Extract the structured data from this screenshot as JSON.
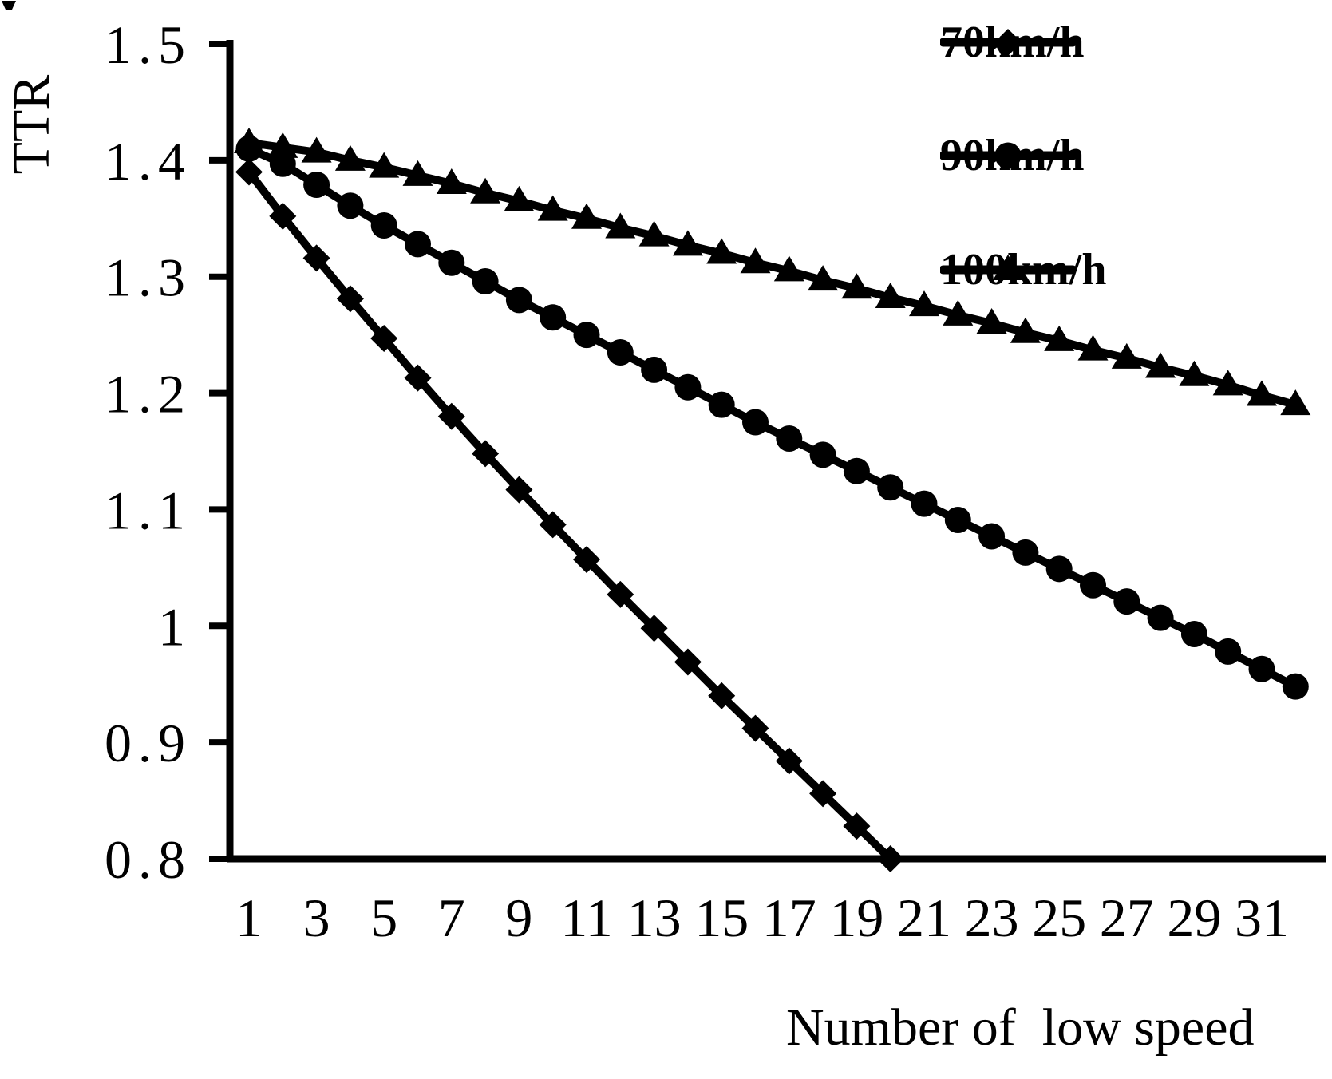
{
  "figure": {
    "background": "#ffffff",
    "ink": "#000000"
  },
  "chart_data": {
    "type": "line",
    "title": "",
    "xlabel": "Number of  low speed",
    "ylabel": "TTR",
    "x_tick_labels": [
      1,
      3,
      5,
      7,
      9,
      11,
      13,
      15,
      17,
      19,
      21,
      23,
      25,
      27,
      29,
      31
    ],
    "y_tick_labels": [
      "1.5",
      "1.4",
      "1.3",
      "1.2",
      "1.1",
      "1",
      "0.9",
      "0.8"
    ],
    "xlim": [
      0,
      33
    ],
    "ylim": [
      0.8,
      1.5
    ],
    "grid": false,
    "legend_position": "top-right",
    "series": [
      {
        "name": "70km/h",
        "marker": "diamond",
        "color": "#000000",
        "x_start": 1,
        "x_step": 1,
        "values": [
          1.39,
          1.352,
          1.316,
          1.281,
          1.247,
          1.213,
          1.18,
          1.148,
          1.117,
          1.087,
          1.057,
          1.027,
          0.998,
          0.969,
          0.94,
          0.912,
          0.884,
          0.856,
          0.828,
          0.8
        ]
      },
      {
        "name": "90km/h",
        "marker": "circle",
        "color": "#000000",
        "x_start": 1,
        "x_step": 1,
        "values": [
          1.41,
          1.397,
          1.379,
          1.361,
          1.344,
          1.328,
          1.312,
          1.296,
          1.28,
          1.265,
          1.25,
          1.235,
          1.22,
          1.205,
          1.19,
          1.175,
          1.161,
          1.147,
          1.133,
          1.119,
          1.105,
          1.091,
          1.077,
          1.063,
          1.049,
          1.035,
          1.021,
          1.007,
          0.993,
          0.978,
          0.963,
          0.948
        ]
      },
      {
        "name": "100km/h",
        "marker": "triangle",
        "color": "#000000",
        "x_start": 1,
        "x_step": 1,
        "values": [
          1.415,
          1.411,
          1.407,
          1.4,
          1.394,
          1.387,
          1.38,
          1.372,
          1.365,
          1.357,
          1.35,
          1.342,
          1.335,
          1.327,
          1.32,
          1.312,
          1.305,
          1.297,
          1.29,
          1.282,
          1.275,
          1.267,
          1.26,
          1.252,
          1.245,
          1.237,
          1.23,
          1.222,
          1.215,
          1.207,
          1.198,
          1.19
        ]
      }
    ]
  }
}
